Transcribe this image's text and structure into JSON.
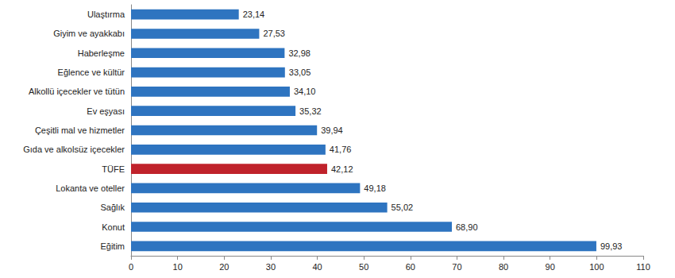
{
  "chart_data": {
    "type": "bar",
    "orientation": "horizontal",
    "categories": [
      "Ulaştırma",
      "Giyim ve ayakkabı",
      "Haberleşme",
      "Eğlence ve kültür",
      "Alkollü içecekler ve tütün",
      "Ev eşyası",
      "Çeşitli mal ve hizmetler",
      "Gıda ve alkolsüz içecekler",
      "TÜFE",
      "Lokanta ve oteller",
      "Sağlık",
      "Konut",
      "Eğitim"
    ],
    "values": [
      23.14,
      27.53,
      32.98,
      33.05,
      34.1,
      35.32,
      39.94,
      41.76,
      42.12,
      49.18,
      55.02,
      68.9,
      99.93
    ],
    "value_labels": [
      "23,14",
      "27,53",
      "32,98",
      "33,05",
      "34,10",
      "35,32",
      "39,94",
      "41,76",
      "42,12",
      "49,18",
      "55,02",
      "68,90",
      "99,93"
    ],
    "colors": [
      "#2e74c0",
      "#2e74c0",
      "#2e74c0",
      "#2e74c0",
      "#2e74c0",
      "#2e74c0",
      "#2e74c0",
      "#2e74c0",
      "#c0222b",
      "#2e74c0",
      "#2e74c0",
      "#2e74c0",
      "#2e74c0"
    ],
    "xlim": [
      0,
      110
    ],
    "xticks": [
      0,
      10,
      20,
      30,
      40,
      50,
      60,
      70,
      80,
      90,
      100,
      110
    ],
    "grid": false,
    "data_labels": true
  }
}
